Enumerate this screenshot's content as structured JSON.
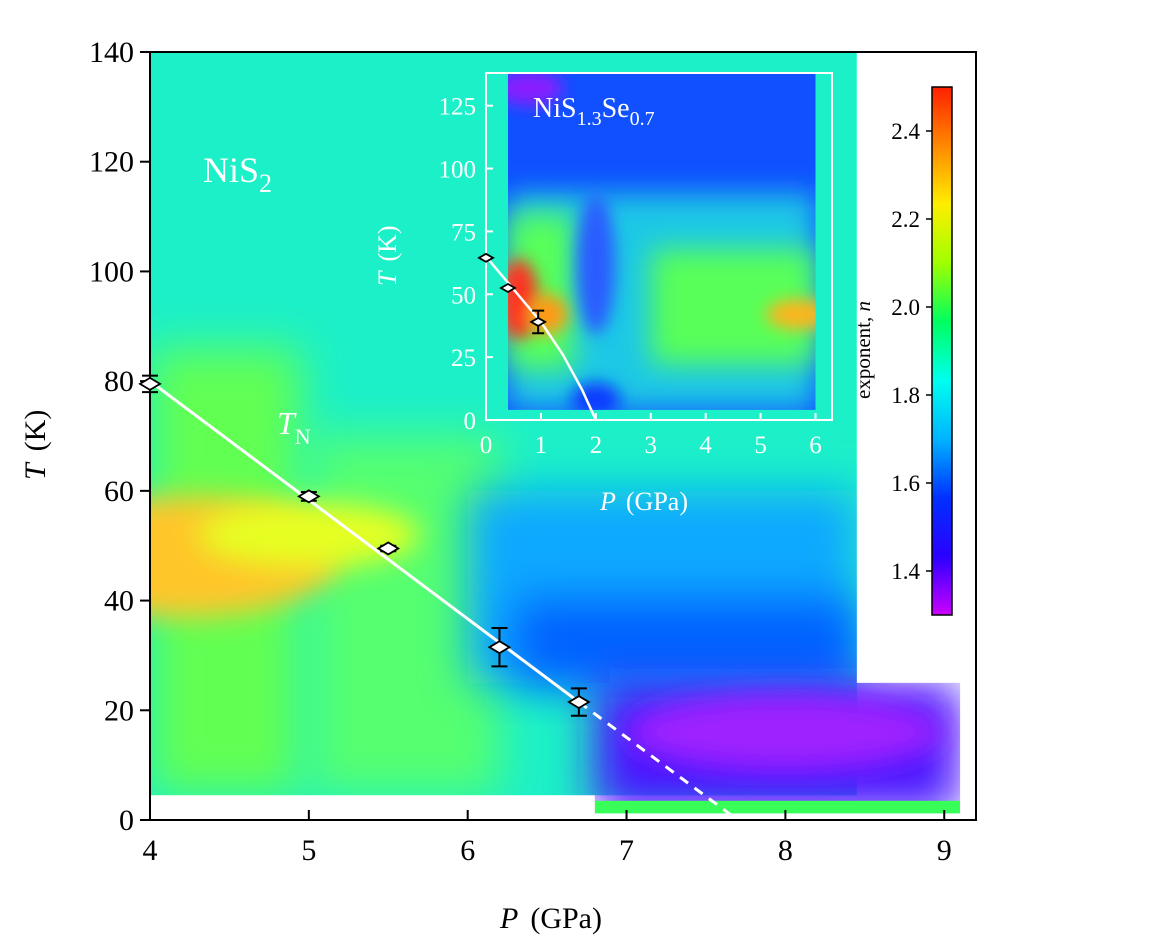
{
  "colors": {
    "background": "#ffffff",
    "axis": "#000000",
    "inset_frame": "#ffffff",
    "phase_line": "#ffffff",
    "marker_fill": "#ffffff",
    "marker_stroke": "#000000",
    "inset_text": "#ffffff"
  },
  "colorbar": {
    "label": "exponent, n",
    "min": 1.3,
    "max": 2.5,
    "ticks": [
      "1.4",
      "1.6",
      "1.8",
      "2.0",
      "2.2",
      "2.4"
    ],
    "tick_values": [
      1.4,
      1.6,
      1.8,
      2.0,
      2.2,
      2.4
    ],
    "colormap": [
      "#cc00ff",
      "#2a00ff",
      "#0030ff",
      "#00b4ff",
      "#00ffee",
      "#00ff60",
      "#a0ff00",
      "#ffee00",
      "#ff8800",
      "#ff2000"
    ]
  },
  "chart_data": [
    {
      "type": "heatmap",
      "title": "",
      "annotations": [
        "NiS2",
        "TN"
      ],
      "sample_label": "NiS",
      "sample_sub": "2",
      "phase_label": "T",
      "phase_label_sub": "N",
      "xlabel_italic": "P",
      "xlabel_unit": "(GPa)",
      "ylabel_italic": "T",
      "ylabel_unit": "(K)",
      "xlim": [
        4,
        9.2
      ],
      "ylim": [
        0,
        140
      ],
      "x_ticks": [
        "4",
        "5",
        "6",
        "7",
        "8",
        "9"
      ],
      "x_tick_values": [
        4,
        5,
        6,
        7,
        8,
        9
      ],
      "y_ticks": [
        "0",
        "20",
        "40",
        "60",
        "80",
        "100",
        "120",
        "140"
      ],
      "y_tick_values": [
        0,
        20,
        40,
        60,
        80,
        100,
        120,
        140
      ],
      "grid": false,
      "colorbar_quantity": "exponent, n",
      "points": [
        {
          "x": 4.0,
          "y": 79.5,
          "err": 1.5
        },
        {
          "x": 5.0,
          "y": 59.0,
          "err": 0.8
        },
        {
          "x": 5.5,
          "y": 49.5,
          "err": 0.5
        },
        {
          "x": 6.2,
          "y": 31.5,
          "err": 3.5
        },
        {
          "x": 6.7,
          "y": 21.5,
          "err": 2.5
        }
      ],
      "phase_line_solid": [
        {
          "x": 4.0,
          "y": 80.0
        },
        {
          "x": 6.7,
          "y": 21.5
        }
      ],
      "phase_line_dashed": [
        {
          "x": 6.7,
          "y": 21.5
        },
        {
          "x": 7.7,
          "y": 0
        }
      ],
      "regions": [
        {
          "x0": 4.0,
          "x1": 8.45,
          "y0": 4.5,
          "y1": 140,
          "fill": "#1cf0c8"
        },
        {
          "x0": 4.0,
          "x1": 4.95,
          "y0": 4.5,
          "y1": 86,
          "fill": "#62ff52"
        },
        {
          "x0": 5.0,
          "x1": 6.2,
          "y0": 4.5,
          "y1": 70,
          "fill": "#55ff70"
        },
        {
          "x0": 6.0,
          "x1": 8.45,
          "y0": 25,
          "y1": 60,
          "fill": "#0aa8ff"
        },
        {
          "x0": 6.3,
          "x1": 8.45,
          "y0": 25,
          "y1": 40,
          "fill": "#0060ff"
        },
        {
          "x0": 6.8,
          "x1": 9.1,
          "y0": 1.2,
          "y1": 25,
          "fill": "#4a14ff"
        },
        {
          "x0": 6.8,
          "x1": 9.1,
          "y0": 1.2,
          "y1": 3.5,
          "fill": "#38ff58"
        }
      ],
      "hot_spots": [
        {
          "x": 4.2,
          "y": 48,
          "rx": 1.0,
          "ry": 11,
          "fill": "#ffc62a"
        },
        {
          "x": 5.0,
          "y": 52,
          "rx": 0.7,
          "ry": 6,
          "fill": "#e6ff22"
        },
        {
          "x": 8.0,
          "y": 16,
          "rx": 1.0,
          "ry": 7,
          "fill": "#9e20ff"
        }
      ],
      "inset": {
        "type": "heatmap",
        "sample_label_base": "NiS",
        "sample_sub1": "1.3",
        "sample_mid": "Se",
        "sample_sub2": "0.7",
        "xlabel_italic": "P",
        "xlabel_unit": "(GPa)",
        "ylabel_italic": "T",
        "ylabel_unit": "(K)",
        "xlim": [
          0,
          6.3
        ],
        "ylim": [
          0,
          138
        ],
        "x_ticks": [
          "0",
          "1",
          "2",
          "3",
          "4",
          "5",
          "6"
        ],
        "x_tick_values": [
          0,
          1,
          2,
          3,
          4,
          5,
          6
        ],
        "y_ticks": [
          "0",
          "25",
          "50",
          "75",
          "100",
          "125"
        ],
        "y_tick_values": [
          0,
          25,
          50,
          75,
          100,
          125
        ],
        "points": [
          {
            "x": 0.0,
            "y": 64.5,
            "err": 0.5
          },
          {
            "x": 0.4,
            "y": 52.5,
            "err": 1.0
          },
          {
            "x": 0.95,
            "y": 39.0,
            "err": 4.5
          }
        ],
        "phase_line": [
          {
            "x": 0.0,
            "y": 65
          },
          {
            "x": 0.5,
            "y": 52
          },
          {
            "x": 1.0,
            "y": 39
          },
          {
            "x": 1.4,
            "y": 26
          },
          {
            "x": 1.75,
            "y": 12
          },
          {
            "x": 2.0,
            "y": 0
          }
        ],
        "regions": [
          {
            "x0": 0.4,
            "x1": 6.0,
            "y0": 4,
            "y1": 138,
            "fill": "#1050ff"
          },
          {
            "x0": 0.4,
            "x1": 6.0,
            "y0": 4,
            "y1": 90,
            "fill": "#1ac8e6"
          },
          {
            "x0": 3.0,
            "x1": 6.0,
            "y0": 22,
            "y1": 68,
            "fill": "#58ff58"
          },
          {
            "x0": 0.4,
            "x1": 1.6,
            "y0": 20,
            "y1": 82,
            "fill": "#58ff58"
          }
        ],
        "hot_spots": [
          {
            "x": 0.6,
            "y": 48,
            "rx": 0.35,
            "ry": 16,
            "fill": "#ff3020"
          },
          {
            "x": 1.1,
            "y": 42,
            "rx": 0.4,
            "ry": 8,
            "fill": "#ff9a18"
          },
          {
            "x": 5.7,
            "y": 42,
            "rx": 0.6,
            "ry": 6,
            "fill": "#ffb41e"
          },
          {
            "x": 0.8,
            "y": 132,
            "rx": 0.6,
            "ry": 7,
            "fill": "#8a1cff"
          },
          {
            "x": 2.0,
            "y": 8,
            "rx": 0.45,
            "ry": 7,
            "fill": "#0f3aff"
          },
          {
            "x": 2.0,
            "y": 62,
            "rx": 0.35,
            "ry": 28,
            "fill": "#2a5cff"
          }
        ]
      }
    }
  ]
}
